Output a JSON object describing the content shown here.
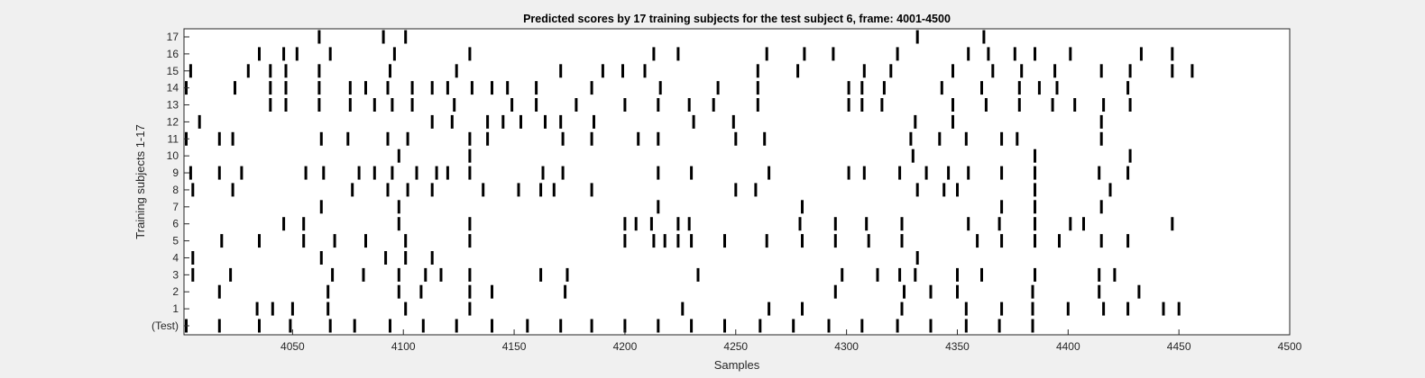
{
  "chart_data": {
    "type": "event-raster",
    "title": "Predicted scores by 17 training subjects for the test subject 6, frame: 4001-4500",
    "xlabel": "Samples",
    "ylabel": "Training subjects 1-17",
    "xlim": [
      4001,
      4500
    ],
    "xticks": [
      4050,
      4100,
      4150,
      4200,
      4250,
      4300,
      4350,
      4400,
      4450,
      4500
    ],
    "grid": false,
    "legend": "none",
    "mark_color": "#000000",
    "rows": [
      {
        "label": "(Test)",
        "events": [
          4002,
          4017,
          4035,
          4049,
          4067,
          4078,
          4094,
          4109,
          4124,
          4140,
          4156,
          4171,
          4185,
          4200,
          4215,
          4230,
          4245,
          4261,
          4276,
          4292,
          4307,
          4323,
          4338,
          4354,
          4369,
          4384
        ]
      },
      {
        "label": "1",
        "events": [
          4034,
          4041,
          4050,
          4066,
          4101,
          4130,
          4226,
          4265,
          4280,
          4325,
          4354,
          4370,
          4384,
          4400,
          4416,
          4427,
          4443,
          4450
        ]
      },
      {
        "label": "2",
        "events": [
          4017,
          4066,
          4098,
          4108,
          4130,
          4140,
          4173,
          4295,
          4326,
          4338,
          4350,
          4384,
          4414,
          4432
        ]
      },
      {
        "label": "3",
        "events": [
          4005,
          4022,
          4068,
          4082,
          4098,
          4110,
          4117,
          4130,
          4162,
          4174,
          4233,
          4298,
          4314,
          4324,
          4331,
          4350,
          4361,
          4385,
          4414,
          4421
        ]
      },
      {
        "label": "4",
        "events": [
          4005,
          4063,
          4092,
          4101,
          4113,
          4332
        ]
      },
      {
        "label": "5",
        "events": [
          4018,
          4035,
          4055,
          4069,
          4083,
          4101,
          4130,
          4200,
          4213,
          4218,
          4224,
          4230,
          4245,
          4264,
          4280,
          4295,
          4310,
          4325,
          4359,
          4370,
          4385,
          4396,
          4415,
          4427
        ]
      },
      {
        "label": "6",
        "events": [
          4046,
          4055,
          4098,
          4130,
          4200,
          4205,
          4212,
          4224,
          4229,
          4279,
          4295,
          4309,
          4325,
          4355,
          4369,
          4385,
          4401,
          4407,
          4447
        ]
      },
      {
        "label": "7",
        "events": [
          4063,
          4098,
          4215,
          4280,
          4370,
          4385,
          4415
        ]
      },
      {
        "label": "8",
        "events": [
          4005,
          4023,
          4077,
          4093,
          4102,
          4113,
          4136,
          4152,
          4162,
          4168,
          4185,
          4250,
          4259,
          4332,
          4344,
          4350,
          4385,
          4419
        ]
      },
      {
        "label": "9",
        "events": [
          4004,
          4017,
          4027,
          4056,
          4064,
          4080,
          4087,
          4095,
          4106,
          4115,
          4120,
          4130,
          4163,
          4172,
          4215,
          4230,
          4265,
          4301,
          4308,
          4324,
          4336,
          4346,
          4355,
          4370,
          4385,
          4414,
          4427
        ]
      },
      {
        "label": "10",
        "events": [
          4098,
          4130,
          4330,
          4385,
          4428
        ]
      },
      {
        "label": "11",
        "events": [
          4002,
          4017,
          4023,
          4063,
          4075,
          4093,
          4102,
          4130,
          4138,
          4172,
          4185,
          4206,
          4215,
          4250,
          4263,
          4329,
          4342,
          4354,
          4370,
          4377,
          4415
        ]
      },
      {
        "label": "12",
        "events": [
          4008,
          4113,
          4122,
          4138,
          4145,
          4153,
          4164,
          4171,
          4186,
          4231,
          4249,
          4331,
          4348,
          4415
        ]
      },
      {
        "label": "13",
        "events": [
          4040,
          4047,
          4062,
          4076,
          4087,
          4095,
          4104,
          4123,
          4149,
          4160,
          4178,
          4200,
          4215,
          4229,
          4240,
          4260,
          4301,
          4307,
          4316,
          4348,
          4363,
          4378,
          4393,
          4403,
          4416,
          4428
        ]
      },
      {
        "label": "14",
        "events": [
          4002,
          4024,
          4040,
          4047,
          4062,
          4076,
          4083,
          4093,
          4104,
          4113,
          4120,
          4131,
          4140,
          4147,
          4160,
          4185,
          4216,
          4242,
          4260,
          4301,
          4307,
          4317,
          4343,
          4361,
          4378,
          4387,
          4395,
          4427
        ]
      },
      {
        "label": "15",
        "events": [
          4004,
          4030,
          4040,
          4047,
          4062,
          4094,
          4124,
          4171,
          4190,
          4199,
          4209,
          4260,
          4278,
          4308,
          4320,
          4348,
          4366,
          4379,
          4394,
          4415,
          4428,
          4447,
          4456
        ]
      },
      {
        "label": "16",
        "events": [
          4035,
          4046,
          4052,
          4067,
          4096,
          4130,
          4213,
          4224,
          4264,
          4281,
          4294,
          4323,
          4355,
          4364,
          4376,
          4385,
          4401,
          4433,
          4447
        ]
      },
      {
        "label": "17",
        "events": [
          4062,
          4091,
          4101,
          4332,
          4362
        ]
      }
    ]
  }
}
